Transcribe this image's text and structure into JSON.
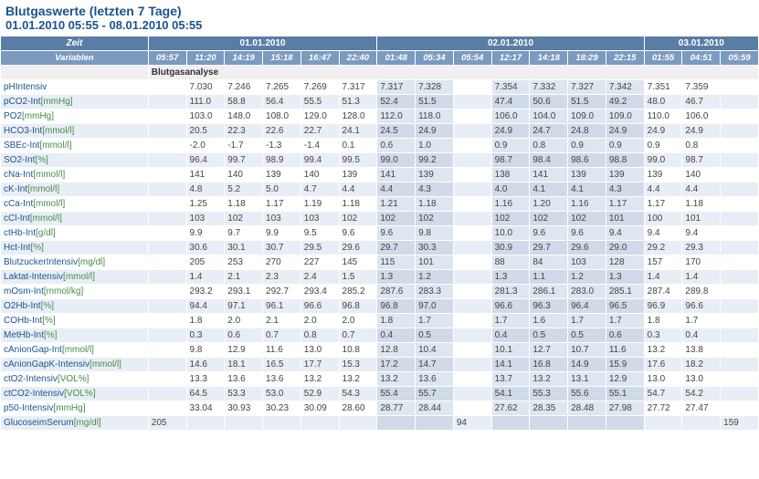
{
  "title": "Blutgaswerte (letzten 7 Tage)",
  "subtitle": "01.01.2010 05:55 - 08.01.2010 05:55",
  "header": {
    "zeit": "Zeit",
    "variablen": "Variablen",
    "dates": [
      "01.01.2010",
      "02.01.2010",
      "03.01.2010"
    ],
    "date_spans": [
      6,
      7,
      3
    ],
    "times": [
      "05:57",
      "11:20",
      "14:19",
      "15:18",
      "16:47",
      "22:40",
      "01:48",
      "05:34",
      "05:54",
      "12:17",
      "14:18",
      "18:29",
      "22:15",
      "01:55",
      "04:51",
      "05:59"
    ]
  },
  "section_label": "Blutgasanalyse",
  "rows": [
    {
      "label": "pHIntensiv",
      "unit": "",
      "vals": [
        "",
        "7.030",
        "7.246",
        "7.265",
        "7.269",
        "7.317",
        "7.317",
        "7.328",
        "",
        "7.354",
        "7.332",
        "7.327",
        "7.342",
        "7.351",
        "7.359",
        ""
      ]
    },
    {
      "label": "pCO2-Int",
      "unit": "[mmHg]",
      "vals": [
        "",
        "111.0",
        "58.8",
        "56.4",
        "55.5",
        "51.3",
        "52.4",
        "51.5",
        "",
        "47.4",
        "50.6",
        "51.5",
        "49.2",
        "48.0",
        "46.7",
        ""
      ]
    },
    {
      "label": "PO2",
      "unit": "[mmHg]",
      "vals": [
        "",
        "103.0",
        "148.0",
        "108.0",
        "129.0",
        "128.0",
        "112.0",
        "118.0",
        "",
        "106.0",
        "104.0",
        "109.0",
        "109.0",
        "110.0",
        "106.0",
        ""
      ]
    },
    {
      "label": "HCO3-Int",
      "unit": "[mmol/l]",
      "vals": [
        "",
        "20.5",
        "22.3",
        "22.6",
        "22.7",
        "24.1",
        "24.5",
        "24.9",
        "",
        "24.9",
        "24.7",
        "24.8",
        "24.9",
        "24.9",
        "24.9",
        ""
      ]
    },
    {
      "label": "SBEc-Int",
      "unit": "[mmol/l]",
      "vals": [
        "",
        "-2.0",
        "-1.7",
        "-1.3",
        "-1.4",
        "0.1",
        "0.6",
        "1.0",
        "",
        "0.9",
        "0.8",
        "0.9",
        "0.9",
        "0.9",
        "0.8",
        ""
      ]
    },
    {
      "label": "SO2-Int",
      "unit": "[%]",
      "vals": [
        "",
        "96.4",
        "99.7",
        "98.9",
        "99.4",
        "99.5",
        "99.0",
        "99.2",
        "",
        "98.7",
        "98.4",
        "98.6",
        "98.8",
        "99.0",
        "98.7",
        ""
      ]
    },
    {
      "label": "cNa-Int",
      "unit": "[mmol/l]",
      "vals": [
        "",
        "141",
        "140",
        "139",
        "140",
        "139",
        "141",
        "139",
        "",
        "138",
        "141",
        "139",
        "139",
        "139",
        "140",
        ""
      ]
    },
    {
      "label": "cK-Int",
      "unit": "[mmol/l]",
      "vals": [
        "",
        "4.8",
        "5.2",
        "5.0",
        "4.7",
        "4.4",
        "4.4",
        "4.3",
        "",
        "4.0",
        "4.1",
        "4.1",
        "4.3",
        "4.4",
        "4.4",
        ""
      ]
    },
    {
      "label": "cCa-Int",
      "unit": "[mmol/l]",
      "vals": [
        "",
        "1.25",
        "1.18",
        "1.17",
        "1.19",
        "1.18",
        "1.21",
        "1.18",
        "",
        "1.16",
        "1.20",
        "1.16",
        "1.17",
        "1.17",
        "1.18",
        ""
      ]
    },
    {
      "label": "cCl-Int",
      "unit": "[mmol/l]",
      "vals": [
        "",
        "103",
        "102",
        "103",
        "103",
        "102",
        "102",
        "102",
        "",
        "102",
        "102",
        "102",
        "101",
        "100",
        "101",
        ""
      ]
    },
    {
      "label": "ctHb-Int",
      "unit": "[g/dl]",
      "vals": [
        "",
        "9.9",
        "9.7",
        "9.9",
        "9.5",
        "9.6",
        "9.6",
        "9.8",
        "",
        "10.0",
        "9.6",
        "9.6",
        "9.4",
        "9.4",
        "9.4",
        ""
      ]
    },
    {
      "label": "Hct-Int",
      "unit": "[%]",
      "vals": [
        "",
        "30.6",
        "30.1",
        "30.7",
        "29.5",
        "29.6",
        "29.7",
        "30.3",
        "",
        "30.9",
        "29.7",
        "29.6",
        "29.0",
        "29.2",
        "29.3",
        ""
      ]
    },
    {
      "label": "BlutzuckerIntensiv",
      "unit": "[mg/dl]",
      "vals": [
        "",
        "205",
        "253",
        "270",
        "227",
        "145",
        "115",
        "101",
        "",
        "88",
        "84",
        "103",
        "128",
        "157",
        "170",
        ""
      ]
    },
    {
      "label": "Laktat-Intensiv",
      "unit": "[mmol/l]",
      "vals": [
        "",
        "1.4",
        "2.1",
        "2.3",
        "2.4",
        "1.5",
        "1.3",
        "1.2",
        "",
        "1.3",
        "1.1",
        "1.2",
        "1.3",
        "1.4",
        "1.4",
        ""
      ]
    },
    {
      "label": "mOsm-Int",
      "unit": "[mmol/kg]",
      "vals": [
        "",
        "293.2",
        "293.1",
        "292.7",
        "293.4",
        "285.2",
        "287.6",
        "283.3",
        "",
        "281.3",
        "286.1",
        "283.0",
        "285.1",
        "287.4",
        "289.8",
        ""
      ]
    },
    {
      "label": "O2Hb-Int",
      "unit": "[%]",
      "vals": [
        "",
        "94.4",
        "97.1",
        "96.1",
        "96.6",
        "96.8",
        "96.8",
        "97.0",
        "",
        "96.6",
        "96.3",
        "96.4",
        "96.5",
        "96.9",
        "96.6",
        ""
      ]
    },
    {
      "label": "COHb-Int",
      "unit": "[%]",
      "vals": [
        "",
        "1.8",
        "2.0",
        "2.1",
        "2.0",
        "2.0",
        "1.8",
        "1.7",
        "",
        "1.7",
        "1.6",
        "1.7",
        "1.7",
        "1.8",
        "1.7",
        ""
      ]
    },
    {
      "label": "MetHb-Int",
      "unit": "[%]",
      "vals": [
        "",
        "0.3",
        "0.6",
        "0.7",
        "0.8",
        "0.7",
        "0.4",
        "0.5",
        "",
        "0.4",
        "0.5",
        "0.5",
        "0.6",
        "0.3",
        "0.4",
        ""
      ]
    },
    {
      "label": "cAnionGap-Int",
      "unit": "[mmol/l]",
      "vals": [
        "",
        "9.8",
        "12.9",
        "11.6",
        "13.0",
        "10.8",
        "12.8",
        "10.4",
        "",
        "10.1",
        "12.7",
        "10.7",
        "11.6",
        "13.2",
        "13.8",
        ""
      ]
    },
    {
      "label": "cAnionGapK-Intensiv",
      "unit": "[mmol/l]",
      "vals": [
        "",
        "14.6",
        "18.1",
        "16.5",
        "17.7",
        "15.3",
        "17.2",
        "14.7",
        "",
        "14.1",
        "16.8",
        "14.9",
        "15.9",
        "17.6",
        "18.2",
        ""
      ]
    },
    {
      "label": "ctO2-Intensiv",
      "unit": "[VOL%]",
      "vals": [
        "",
        "13.3",
        "13.6",
        "13.6",
        "13.2",
        "13.2",
        "13.2",
        "13.6",
        "",
        "13.7",
        "13.2",
        "13.1",
        "12.9",
        "13.0",
        "13.0",
        ""
      ]
    },
    {
      "label": "ctCO2-Intensiv",
      "unit": "[VOL%]",
      "vals": [
        "",
        "64.5",
        "53.3",
        "53.0",
        "52.9",
        "54.3",
        "55.4",
        "55.7",
        "",
        "54.1",
        "55.3",
        "55.6",
        "55.1",
        "54.7",
        "54.2",
        ""
      ]
    },
    {
      "label": "p50-Intensiv",
      "unit": "[mmHg]",
      "vals": [
        "",
        "33.04",
        "30.93",
        "30.23",
        "30.09",
        "28.60",
        "28.77",
        "28.44",
        "",
        "27.62",
        "28.35",
        "28.48",
        "27.98",
        "27.72",
        "27.47",
        ""
      ]
    },
    {
      "label": "GlucoseimSerum",
      "unit": "[mg/dl]",
      "vals": [
        "205",
        "",
        "",
        "",
        "",
        "",
        "",
        "",
        "94",
        "",
        "",
        "",
        "",
        "",
        "",
        "159"
      ]
    }
  ],
  "alt_shade_cols": [
    6,
    7,
    9,
    10,
    11,
    12
  ],
  "colors": {
    "header_bg1": "#5a7da5",
    "header_bg2": "#7a9ac0",
    "accent": "#1a5490",
    "unit": "#4a8a4a",
    "row_alt": "#e8eef5",
    "shade": "#dee6ef"
  }
}
